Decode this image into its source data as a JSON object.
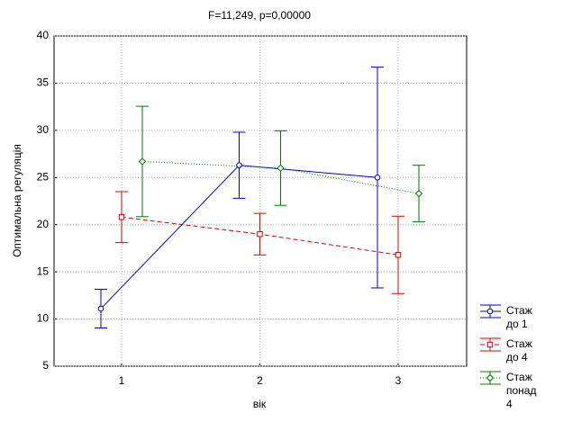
{
  "chart_data": {
    "type": "line",
    "title": "F=11,249, p=0,00000",
    "xlabel": "вік",
    "ylabel": "Оптимальна регуляція",
    "categories": [
      "1",
      "2",
      "3"
    ],
    "series": [
      {
        "name": "Стаж до 1",
        "color": "#0000c8",
        "marker": "circle",
        "dash": "solid",
        "values": [
          11.1,
          26.3,
          25.0
        ],
        "errors": [
          2.05,
          3.5,
          11.7
        ]
      },
      {
        "name": "Стаж до 4",
        "color": "#d40000",
        "marker": "square",
        "dash": "dashed",
        "values": [
          20.8,
          19.0,
          16.8
        ],
        "errors": [
          2.7,
          2.2,
          4.1
        ]
      },
      {
        "name": "Стаж понад 4",
        "color": "#007a00",
        "marker": "diamond",
        "dash": "dotted",
        "values": [
          26.7,
          26.0,
          23.3
        ],
        "errors": [
          5.85,
          3.95,
          3.0
        ]
      }
    ],
    "ylim": [
      5,
      40
    ],
    "yticks": [
      5,
      10,
      15,
      20,
      25,
      30,
      35,
      40
    ],
    "grid": true,
    "legend": "lower right"
  }
}
